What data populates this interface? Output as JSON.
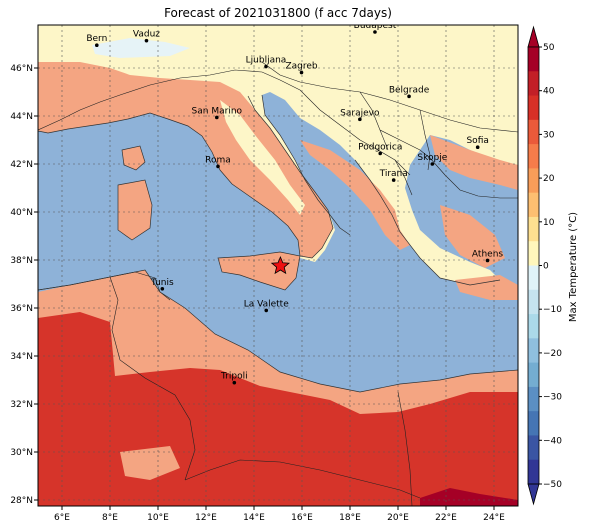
{
  "title": "Forecast of 2021031800 (f acc 7days)",
  "map": {
    "lon_range": [
      5,
      25
    ],
    "lat_range": [
      27.8,
      47.9
    ],
    "gridlines": true,
    "lon_ticks": [
      "6°E",
      "8°E",
      "10°E",
      "12°E",
      "14°E",
      "16°E",
      "18°E",
      "20°E",
      "22°E",
      "24°E"
    ],
    "lat_ticks": [
      "28°N",
      "30°N",
      "32°N",
      "34°N",
      "36°N",
      "38°N",
      "40°N",
      "42°N",
      "44°N",
      "46°N"
    ],
    "cities": [
      {
        "name": "Bern",
        "lon": 7.45,
        "lat": 46.95
      },
      {
        "name": "Vaduz",
        "lon": 9.52,
        "lat": 47.14
      },
      {
        "name": "Budapest",
        "lon": 19.04,
        "lat": 47.5
      },
      {
        "name": "Ljubljana",
        "lon": 14.5,
        "lat": 46.06
      },
      {
        "name": "Zagreb",
        "lon": 15.98,
        "lat": 45.81
      },
      {
        "name": "Belgrade",
        "lon": 20.46,
        "lat": 44.82
      },
      {
        "name": "San Marino",
        "lon": 12.45,
        "lat": 43.94
      },
      {
        "name": "Sarajevo",
        "lon": 18.41,
        "lat": 43.86
      },
      {
        "name": "Sofia",
        "lon": 23.32,
        "lat": 42.7
      },
      {
        "name": "Podgorica",
        "lon": 19.26,
        "lat": 42.44
      },
      {
        "name": "Skopje",
        "lon": 21.43,
        "lat": 42.0
      },
      {
        "name": "Roma",
        "lon": 12.5,
        "lat": 41.9
      },
      {
        "name": "Tirana",
        "lon": 19.82,
        "lat": 41.33
      },
      {
        "name": "Athens",
        "lon": 23.73,
        "lat": 37.98
      },
      {
        "name": "Tunis",
        "lon": 10.18,
        "lat": 36.8
      },
      {
        "name": "La Valette",
        "lon": 14.51,
        "lat": 35.9
      },
      {
        "name": "Tripoli",
        "lon": 13.18,
        "lat": 32.89
      }
    ],
    "star_marker": {
      "lon": 15.1,
      "lat": 37.75,
      "color": "#ee1111"
    }
  },
  "colorbar": {
    "label": "Max Temperature (°C)",
    "ticks": [
      "50",
      "40",
      "30",
      "20",
      "10",
      "0",
      "−10",
      "−20",
      "−30",
      "−40",
      "−50"
    ],
    "colors": [
      "#a50026",
      "#c21f27",
      "#d73027",
      "#eb5a3a",
      "#f67c4a",
      "#f89d59",
      "#fdbf71",
      "#fee090",
      "#fff7bc",
      "#e0f3f8",
      "#c5e3ef",
      "#abd9e9",
      "#8fbfde",
      "#74add1",
      "#5b8fc3",
      "#4575b4",
      "#3a55a3",
      "#313695"
    ]
  },
  "field_colors": {
    "sea": "#8eb2d8",
    "warm_land": "#f4a582",
    "hot": "#d6342a",
    "very_hot": "#c0232a",
    "mild": "#fdf6c8",
    "cool": "#e6f3f7"
  }
}
